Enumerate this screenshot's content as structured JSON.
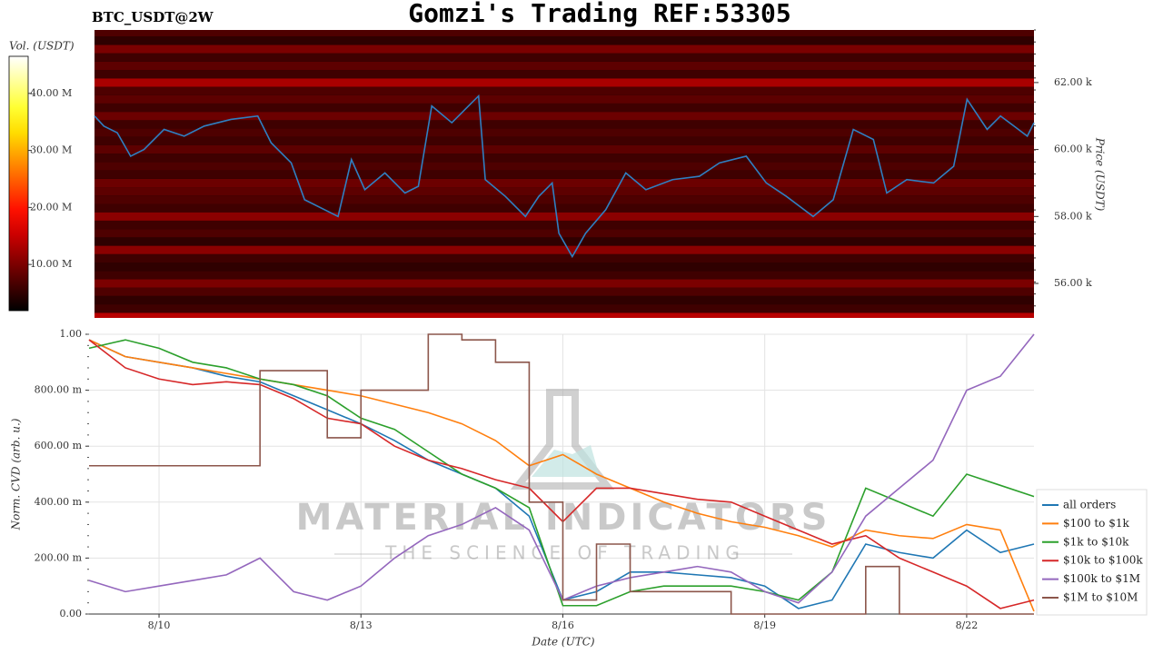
{
  "chart_data": [
    {
      "type": "heatmap",
      "suptitle": "Gomzi's Trading REF:53305",
      "title": "BTC_USDT@2W",
      "y_label": "Price (USDT)",
      "xlim": [
        8.96,
        23.0
      ],
      "ylim": [
        54.97,
        63.57
      ],
      "yticks": [
        {
          "value": 56,
          "label": "56.00 k"
        },
        {
          "value": 58,
          "label": "58.00 k"
        },
        {
          "value": 60,
          "label": "60.00 k"
        },
        {
          "value": 62,
          "label": "62.00 k"
        }
      ],
      "colorbar": {
        "label": "Vol. (USDT)",
        "colormap": "hot",
        "lim": [
          1.9,
          46.5
        ],
        "ticks": [
          {
            "value": 10,
            "label": "10.00 M"
          },
          {
            "value": 20,
            "label": "20.00 M"
          },
          {
            "value": 30,
            "label": "30.00 M"
          },
          {
            "value": 40,
            "label": "40.00 M"
          }
        ]
      },
      "level_step": 0.25,
      "levels": [
        55.0,
        55.25,
        55.5,
        55.75,
        56.0,
        56.25,
        56.5,
        56.75,
        57.0,
        57.25,
        57.5,
        57.75,
        58.0,
        58.25,
        58.5,
        58.75,
        59.0,
        59.25,
        59.5,
        59.75,
        60.0,
        60.25,
        60.5,
        60.75,
        61.0,
        61.25,
        61.5,
        61.75,
        62.0,
        62.25,
        62.5,
        62.75,
        63.0,
        63.25,
        63.5
      ],
      "volumes": [
        14,
        6,
        5,
        7,
        10,
        6,
        5,
        6,
        11,
        5,
        7,
        6,
        11,
        6,
        7,
        8,
        9,
        6,
        7,
        6,
        8,
        6,
        7,
        6,
        9,
        6,
        8,
        7,
        13,
        6,
        8,
        6,
        10,
        5,
        7
      ],
      "series": [
        {
          "color": "#2f7fc1",
          "x": [
            8.96,
            9.1,
            9.3,
            9.5,
            9.7,
            10.0,
            10.3,
            10.6,
            11.0,
            11.4,
            11.6,
            11.9,
            12.1,
            12.4,
            12.6,
            12.8,
            13.0,
            13.3,
            13.6,
            13.8,
            14.0,
            14.3,
            14.5,
            14.7,
            14.8,
            15.1,
            15.4,
            15.6,
            15.8,
            15.9,
            16.1,
            16.3,
            16.6,
            16.9,
            17.2,
            17.6,
            18.0,
            18.3,
            18.7,
            19.0,
            19.3,
            19.7,
            20.0,
            20.3,
            20.6,
            20.8,
            21.1,
            21.5,
            21.8,
            22.0,
            22.3,
            22.5,
            22.7,
            22.9,
            23.0
          ],
          "values": [
            61.0,
            60.7,
            60.5,
            59.8,
            60.0,
            60.6,
            60.4,
            60.7,
            60.9,
            61.0,
            60.2,
            59.6,
            58.5,
            58.2,
            58.0,
            59.7,
            58.8,
            59.3,
            58.7,
            58.9,
            61.3,
            60.8,
            61.2,
            61.6,
            59.1,
            58.6,
            58.0,
            58.6,
            59.0,
            57.5,
            56.8,
            57.5,
            58.2,
            59.3,
            58.8,
            59.1,
            59.2,
            59.6,
            59.8,
            59.0,
            58.6,
            58.0,
            58.5,
            60.6,
            60.3,
            58.7,
            59.1,
            59.0,
            59.5,
            61.5,
            60.6,
            61.0,
            60.7,
            60.4,
            60.8
          ]
        }
      ]
    },
    {
      "type": "line",
      "y_label": "Norm. CVD (arb. u.)",
      "x_label": "Date (UTC)",
      "grid": true,
      "legend": "right",
      "watermark": [
        "MATERIAL INDICATORS",
        "THE SCIENCE OF TRADING"
      ],
      "xlim": [
        8.96,
        23.0
      ],
      "ylim": [
        0,
        1
      ],
      "xticks": [
        {
          "value": 10,
          "label": "8/10"
        },
        {
          "value": 13,
          "label": "8/13"
        },
        {
          "value": 16,
          "label": "8/16"
        },
        {
          "value": 19,
          "label": "8/19"
        },
        {
          "value": 22,
          "label": "8/22"
        }
      ],
      "yticks": [
        {
          "value": 0,
          "label": "0.00"
        },
        {
          "value": 0.2,
          "label": "200.00 m"
        },
        {
          "value": 0.4,
          "label": "400.00 m"
        },
        {
          "value": 0.6,
          "label": "600.00 m"
        },
        {
          "value": 0.8,
          "label": "800.00 m"
        },
        {
          "value": 1,
          "label": "1.00"
        }
      ],
      "x": [
        8.96,
        9.5,
        10,
        10.5,
        11,
        11.5,
        12,
        12.5,
        13,
        13.5,
        14,
        14.5,
        15,
        15.5,
        16,
        16.5,
        17,
        17.5,
        18,
        18.5,
        19,
        19.5,
        20,
        20.5,
        21,
        21.5,
        22,
        22.5,
        23
      ],
      "series": [
        {
          "name": "all orders",
          "color": "#1f77b4",
          "values": [
            0.98,
            0.92,
            0.9,
            0.88,
            0.85,
            0.83,
            0.78,
            0.73,
            0.68,
            0.62,
            0.55,
            0.5,
            0.45,
            0.35,
            0.05,
            0.08,
            0.15,
            0.15,
            0.14,
            0.13,
            0.1,
            0.02,
            0.05,
            0.25,
            0.22,
            0.2,
            0.3,
            0.22,
            0.25
          ]
        },
        {
          "name": "$100 to $1k",
          "color": "#ff7f0e",
          "values": [
            0.98,
            0.92,
            0.9,
            0.88,
            0.86,
            0.84,
            0.82,
            0.8,
            0.78,
            0.75,
            0.72,
            0.68,
            0.62,
            0.53,
            0.57,
            0.5,
            0.45,
            0.4,
            0.36,
            0.33,
            0.31,
            0.28,
            0.24,
            0.3,
            0.28,
            0.27,
            0.32,
            0.3,
            0.01
          ]
        },
        {
          "name": "$1k to $10k",
          "color": "#2ca02c",
          "values": [
            0.95,
            0.98,
            0.95,
            0.9,
            0.88,
            0.84,
            0.82,
            0.78,
            0.7,
            0.66,
            0.58,
            0.5,
            0.45,
            0.38,
            0.03,
            0.03,
            0.08,
            0.1,
            0.1,
            0.1,
            0.08,
            0.05,
            0.15,
            0.45,
            0.4,
            0.35,
            0.5,
            0.46,
            0.42
          ]
        },
        {
          "name": "$10k to $100k",
          "color": "#d62728",
          "values": [
            0.98,
            0.88,
            0.84,
            0.82,
            0.83,
            0.82,
            0.77,
            0.7,
            0.68,
            0.6,
            0.55,
            0.52,
            0.48,
            0.45,
            0.33,
            0.45,
            0.45,
            0.43,
            0.41,
            0.4,
            0.35,
            0.3,
            0.25,
            0.28,
            0.2,
            0.15,
            0.1,
            0.02,
            0.05
          ]
        },
        {
          "name": "$100k to $1M",
          "color": "#9467bd",
          "values": [
            0.12,
            0.08,
            0.1,
            0.12,
            0.14,
            0.2,
            0.08,
            0.05,
            0.1,
            0.2,
            0.28,
            0.32,
            0.38,
            0.3,
            0.05,
            0.1,
            0.13,
            0.15,
            0.17,
            0.15,
            0.08,
            0.04,
            0.15,
            0.35,
            0.45,
            0.55,
            0.8,
            0.85,
            1.0
          ]
        },
        {
          "name": "$1M to $10M",
          "color": "#8c564b",
          "drawstyle": "steps-post",
          "values": [
            0.53,
            0.53,
            0.53,
            0.53,
            0.53,
            0.87,
            0.87,
            0.63,
            0.8,
            0.8,
            1.0,
            0.98,
            0.9,
            0.4,
            0.05,
            0.25,
            0.08,
            0.08,
            0.08,
            0.0,
            0.0,
            0.0,
            0.0,
            0.17,
            0.0,
            0.0,
            0.0,
            0.0,
            0.0
          ]
        }
      ]
    }
  ]
}
